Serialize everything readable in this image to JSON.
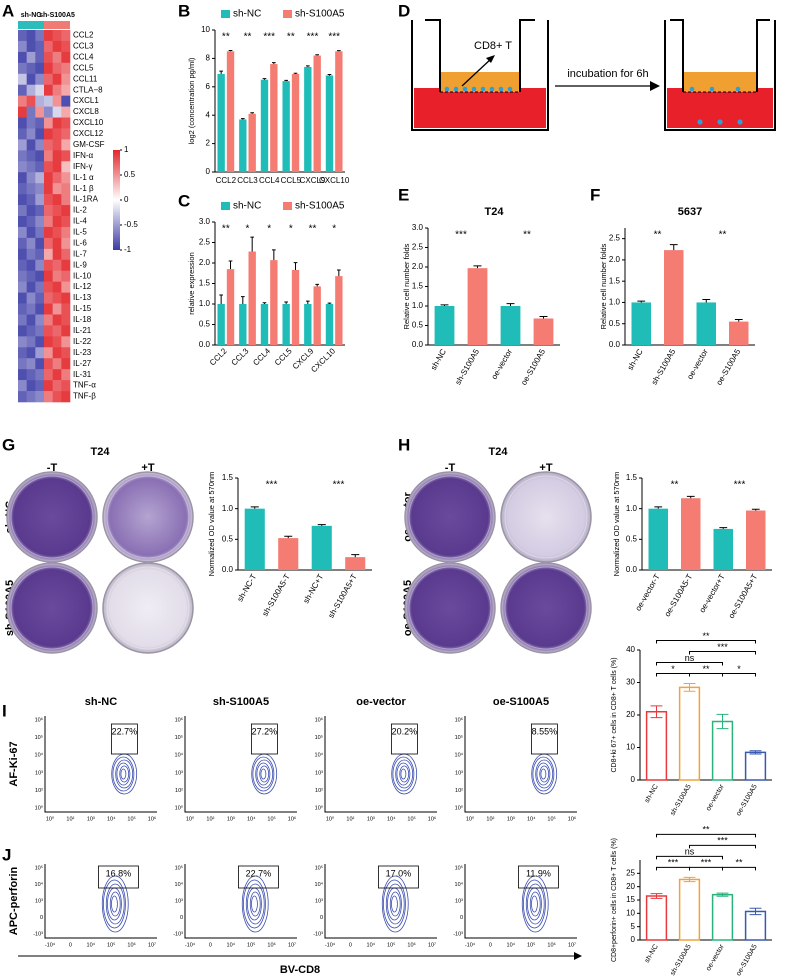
{
  "panel_letters": [
    "A",
    "B",
    "C",
    "D",
    "E",
    "F",
    "G",
    "H",
    "I",
    "J"
  ],
  "diagram": {
    "cell_label": "CD8+ T",
    "step_label": "incubation for 6h"
  },
  "plates": [
    {
      "title": "T24",
      "columns": [
        "-T",
        "+T"
      ],
      "rows": [
        "sh-NC",
        "sh-S100A5"
      ]
    },
    {
      "title": "T24",
      "columns": [
        "-T",
        "+T"
      ],
      "rows": [
        "oe-vector",
        "oe-S100A5"
      ]
    }
  ],
  "flow": {
    "columns": [
      "sh-NC",
      "sh-S100A5",
      "oe-vector",
      "oe-S100A5"
    ],
    "rows": [
      {
        "y_label": "AF-Ki-67",
        "gates": [
          "22.7%",
          "27.2%",
          "20.2%",
          "8.55%"
        ],
        "x_ticks": [
          "10⁰",
          "10²",
          "10³",
          "10⁴",
          "10⁵",
          "10⁶"
        ],
        "y_ticks": [
          "10⁰",
          "10²",
          "10³",
          "10⁴",
          "10⁵",
          "10⁶"
        ]
      },
      {
        "y_label": "APC-perforin",
        "gates": [
          "16.8%",
          "22.7%",
          "17.0%",
          "11.9%"
        ],
        "x_ticks": [
          "-10⁴",
          "0",
          "10⁴",
          "10⁵",
          "10⁶",
          "10⁷"
        ],
        "y_ticks": [
          "-10³",
          "0",
          "10³",
          "10⁴",
          "10⁵"
        ]
      }
    ],
    "x_label": "BV-CD8"
  },
  "chart_data": [
    {
      "type": "heatmap",
      "groups": [
        {
          "name": "sh-NC",
          "color": "#2bbcbc"
        },
        {
          "name": "sh-S100A5",
          "color": "#f07b74"
        }
      ],
      "rows": [
        "CCL2",
        "CCL3",
        "CCL4",
        "CCL5",
        "CCL11",
        "CTLA−8",
        "CXCL1",
        "CXCL8",
        "CXCL10",
        "CXCL12",
        "GM-CSF",
        "IFN-α",
        "IFN-γ",
        "IL-1 α",
        "IL-1 β",
        "IL-1RA",
        "IL-2",
        "IL-4",
        "IL-5",
        "IL-6",
        "IL-7",
        "IL-9",
        "IL-10",
        "IL-12",
        "IL-13",
        "IL-15",
        "IL-18",
        "IL-21",
        "IL-22",
        "IL-23",
        "IL-27",
        "IL-31",
        "TNF-α",
        "TNF-β"
      ],
      "row_colors": [
        "#e3262b",
        "#e3262b",
        "#e3262b",
        "#e3262b",
        "#000000",
        "#000000",
        "#000000",
        "#000000",
        "#e3262b",
        "#000000",
        "#000000",
        "#000000",
        "#000000",
        "#000000",
        "#000000",
        "#000000",
        "#000000",
        "#000000",
        "#000000",
        "#000000",
        "#000000",
        "#000000",
        "#000000",
        "#000000",
        "#000000",
        "#000000",
        "#000000",
        "#000000",
        "#000000",
        "#000000",
        "#000000",
        "#000000",
        "#000000",
        "#000000"
      ],
      "values": [
        [
          -0.8,
          -0.9,
          -0.7,
          0.9,
          0.8,
          0.7
        ],
        [
          -0.6,
          -0.9,
          -0.8,
          0.7,
          0.9,
          0.8
        ],
        [
          -0.9,
          -0.5,
          -0.8,
          0.8,
          0.6,
          0.9
        ],
        [
          -0.7,
          -0.8,
          -0.9,
          0.9,
          0.7,
          0.6
        ],
        [
          -0.3,
          -0.9,
          -0.6,
          0.7,
          0.9,
          0.5
        ],
        [
          -0.8,
          -0.4,
          -0.2,
          0.9,
          0.6,
          0.4
        ],
        [
          0.6,
          0.8,
          -0.4,
          -0.3,
          0.5,
          -0.9
        ],
        [
          0.9,
          -0.7,
          0.5,
          -0.6,
          -0.2,
          0.4
        ],
        [
          -0.9,
          -0.7,
          -0.8,
          0.5,
          0.9,
          0.8
        ],
        [
          -0.8,
          -0.6,
          -0.9,
          0.9,
          0.8,
          0.7
        ],
        [
          -0.5,
          -0.9,
          -0.6,
          0.7,
          0.8,
          0.4
        ],
        [
          -0.7,
          -0.8,
          -0.9,
          0.6,
          0.9,
          0.8
        ],
        [
          -0.6,
          -0.7,
          -0.8,
          0.8,
          0.9,
          0.3
        ],
        [
          -0.9,
          -0.6,
          -0.4,
          0.9,
          0.7,
          0.5
        ],
        [
          -0.8,
          -0.7,
          -0.6,
          0.9,
          0.5,
          0.6
        ],
        [
          -0.9,
          -0.8,
          -0.5,
          0.8,
          0.9,
          0.6
        ],
        [
          -0.7,
          -0.9,
          -0.8,
          0.7,
          0.8,
          0.9
        ],
        [
          -0.9,
          -0.8,
          -0.6,
          0.6,
          0.9,
          0.8
        ],
        [
          -0.6,
          -0.9,
          -0.7,
          0.9,
          0.8,
          0.6
        ],
        [
          -0.8,
          -0.6,
          -0.9,
          0.7,
          0.9,
          0.5
        ],
        [
          -0.9,
          -0.7,
          -0.8,
          0.4,
          0.9,
          0.7
        ],
        [
          -0.8,
          -0.9,
          -0.6,
          0.8,
          0.7,
          0.9
        ],
        [
          -0.7,
          -0.8,
          -0.9,
          0.9,
          0.6,
          0.7
        ],
        [
          -0.6,
          -0.9,
          -0.7,
          0.8,
          0.9,
          0.5
        ],
        [
          -0.9,
          -0.6,
          -0.8,
          0.7,
          0.8,
          0.9
        ],
        [
          -0.8,
          -0.7,
          -0.9,
          0.9,
          0.5,
          0.8
        ],
        [
          -0.7,
          -0.9,
          -0.6,
          0.6,
          0.9,
          0.8
        ],
        [
          -0.9,
          -0.8,
          -0.7,
          0.8,
          0.7,
          0.9
        ],
        [
          -0.6,
          -0.7,
          -0.9,
          0.9,
          0.8,
          0.5
        ],
        [
          -0.8,
          -0.9,
          -0.5,
          0.5,
          0.9,
          0.8
        ],
        [
          -0.7,
          -0.6,
          -0.9,
          0.8,
          0.6,
          0.9
        ],
        [
          -0.9,
          -0.8,
          -0.7,
          0.7,
          0.9,
          0.6
        ],
        [
          -0.6,
          -0.9,
          -0.8,
          0.9,
          0.7,
          0.8
        ],
        [
          -0.8,
          -0.7,
          -0.6,
          0.6,
          0.8,
          0.9
        ]
      ],
      "zlim": [
        -1,
        1
      ],
      "zticks": [
        1,
        0.5,
        0,
        -0.5,
        -1
      ],
      "colorscale": [
        "#3b3ba6",
        "#ffffff",
        "#e3262b"
      ]
    },
    {
      "type": "bar",
      "y_label": "log2 (concentration pg/ml)",
      "categories": [
        "CCL2",
        "CCL3",
        "CCL4",
        "CCL5",
        "CXCL9",
        "CXCL10"
      ],
      "series": [
        {
          "name": "sh-NC",
          "color": "#20bdb8",
          "values": [
            6.9,
            3.7,
            6.5,
            6.4,
            7.4,
            6.8
          ],
          "errors": [
            0.2,
            0.06,
            0.08,
            0.05,
            0.07,
            0.07
          ]
        },
        {
          "name": "sh-S100A5",
          "color": "#f47c72",
          "values": [
            8.5,
            4.1,
            7.6,
            6.9,
            8.2,
            8.5
          ],
          "errors": [
            0.06,
            0.07,
            0.1,
            0.05,
            0.06,
            0.05
          ]
        }
      ],
      "significance": [
        "**",
        "**",
        "***",
        "**",
        "***",
        "***"
      ],
      "ylim": [
        0,
        10
      ],
      "yticks": [
        0,
        2,
        4,
        6,
        8,
        10
      ]
    },
    {
      "type": "bar",
      "y_label": "relative expression",
      "categories": [
        "CCL2",
        "CCL3",
        "CCL4",
        "CCL5",
        "CXCL9",
        "CXCL10"
      ],
      "series": [
        {
          "name": "sh-NC",
          "color": "#20bdb8",
          "values": [
            1.0,
            1.0,
            1.0,
            1.0,
            1.0,
            1.0
          ],
          "errors": [
            0.22,
            0.18,
            0.03,
            0.05,
            0.07,
            0.02
          ]
        },
        {
          "name": "sh-S100A5",
          "color": "#f47c72",
          "values": [
            1.85,
            2.28,
            2.07,
            1.83,
            1.43,
            1.68
          ],
          "errors": [
            0.2,
            0.35,
            0.25,
            0.18,
            0.05,
            0.15
          ]
        }
      ],
      "significance": [
        "**",
        "*",
        "*",
        "*",
        "**",
        "*"
      ],
      "ylim": [
        0,
        3
      ],
      "yticks": [
        {
          "value": 0,
          "label": "0.0"
        },
        0.5,
        {
          "value": 1,
          "label": "1.0"
        },
        1.5,
        {
          "value": 2,
          "label": "2.0"
        },
        2.5,
        {
          "value": 3,
          "label": "3.0"
        }
      ],
      "x_label_rotation": -45
    },
    {
      "type": "bar",
      "title": "T24",
      "y_label": "Relative cell number folds",
      "categories": [
        "sh-NC",
        "sh-S100A5",
        "oe-vector",
        "oe-S100A5"
      ],
      "values": [
        1.0,
        1.97,
        1.0,
        0.68
      ],
      "errors": [
        0.03,
        0.06,
        0.06,
        0.05
      ],
      "colors": [
        "#20bdb8",
        "#f47c72",
        "#20bdb8",
        "#f47c72"
      ],
      "significance": [
        "***",
        "**"
      ],
      "ylim": [
        0,
        3
      ],
      "yticks": [
        {
          "value": 0,
          "label": "0.0"
        },
        0.5,
        {
          "value": 1,
          "label": "1.0"
        },
        1.5,
        {
          "value": 2,
          "label": "2.0"
        },
        2.5,
        {
          "value": 3,
          "label": "3.0"
        }
      ],
      "x_label_rotation": -60
    },
    {
      "type": "bar",
      "title": "5637",
      "y_label": "Relative cell number folds",
      "categories": [
        "sh-NC",
        "sh-S100A5",
        "oe-vector",
        "oe-S100A5"
      ],
      "values": [
        1.0,
        2.23,
        1.0,
        0.55
      ],
      "errors": [
        0.03,
        0.13,
        0.07,
        0.05
      ],
      "colors": [
        "#20bdb8",
        "#f47c72",
        "#20bdb8",
        "#f47c72"
      ],
      "significance": [
        "**",
        "**"
      ],
      "ylim": [
        0,
        2.75
      ],
      "yticks": [
        {
          "value": 0,
          "label": "0.0"
        },
        0.5,
        {
          "value": 1,
          "label": "1.0"
        },
        1.5,
        {
          "value": 2,
          "label": "2.0"
        },
        2.5
      ],
      "x_label_rotation": -60
    },
    {
      "type": "bar",
      "y_label": "Normalized OD value at 570nm",
      "categories": [
        "sh-NC-T",
        "sh-S100A5-T",
        "sh-NC+T",
        "sh-S100A5+T"
      ],
      "values": [
        1.0,
        0.52,
        0.72,
        0.21
      ],
      "errors": [
        0.03,
        0.03,
        0.02,
        0.04
      ],
      "colors": [
        "#20bdb8",
        "#f47c72",
        "#20bdb8",
        "#f47c72"
      ],
      "significance": [
        "***",
        "***"
      ],
      "ylim": [
        0,
        1.5
      ],
      "yticks": [
        {
          "value": 0,
          "label": "0.0"
        },
        0.5,
        {
          "value": 1,
          "label": "1.0"
        },
        1.5
      ],
      "x_label_rotation": -60
    },
    {
      "type": "bar",
      "y_label": "Normalized OD value at 570nm",
      "categories": [
        "oe-vector-T",
        "oe-S100A5-T",
        "oe-vector+T",
        "oe-S100A5+T"
      ],
      "values": [
        1.0,
        1.17,
        0.67,
        0.97
      ],
      "errors": [
        0.03,
        0.03,
        0.02,
        0.02
      ],
      "colors": [
        "#20bdb8",
        "#f47c72",
        "#20bdb8",
        "#f47c72"
      ],
      "significance": [
        "**",
        "***"
      ],
      "ylim": [
        0,
        1.5
      ],
      "yticks": [
        {
          "value": 0,
          "label": "0.0"
        },
        0.5,
        {
          "value": 1,
          "label": "1.0"
        },
        1.5
      ],
      "x_label_rotation": -60
    },
    {
      "type": "bar",
      "y_label": "CD8+ki 67+ cells in CD8+ T cells (%)",
      "categories": [
        "sh-NC",
        "sh-S100A5",
        "oe-vector",
        "oe-S100A5"
      ],
      "values": [
        21,
        28.5,
        18,
        8.5
      ],
      "errors": [
        1.8,
        1.2,
        2.2,
        0.5
      ],
      "colors": [
        "#e8393c",
        "#f2a23a",
        "#2ab37a",
        "#3a58b0"
      ],
      "outlined": true,
      "comparisons": [
        {
          "groups": [
            0,
            3
          ],
          "label": "**"
        },
        {
          "groups": [
            1,
            3
          ],
          "label": "***"
        },
        {
          "groups": [
            0,
            2
          ],
          "label": "ns"
        },
        {
          "groups": [
            0,
            1
          ],
          "label": "*"
        },
        {
          "groups": [
            1,
            2
          ],
          "label": "**"
        },
        {
          "groups": [
            2,
            3
          ],
          "label": "*"
        }
      ],
      "ylim": [
        0,
        40
      ],
      "yticks": [
        0,
        10,
        20,
        30,
        40
      ],
      "x_label_rotation": -60
    },
    {
      "type": "bar",
      "y_label": "CD8+perforin+ cells in CD8+ T cells (%)",
      "categories": [
        "sh-NC",
        "sh-S100A5",
        "oe-vector",
        "oe-S100A5"
      ],
      "values": [
        16.5,
        22.7,
        17.0,
        10.7
      ],
      "errors": [
        0.9,
        0.8,
        0.6,
        1.2
      ],
      "colors": [
        "#e8393c",
        "#f2a23a",
        "#2ab37a",
        "#3a58b0"
      ],
      "outlined": true,
      "comparisons": [
        {
          "groups": [
            0,
            3
          ],
          "label": "**"
        },
        {
          "groups": [
            1,
            3
          ],
          "label": "***"
        },
        {
          "groups": [
            0,
            2
          ],
          "label": "ns"
        },
        {
          "groups": [
            0,
            1
          ],
          "label": "***"
        },
        {
          "groups": [
            1,
            2
          ],
          "label": "***"
        },
        {
          "groups": [
            2,
            3
          ],
          "label": "**"
        }
      ],
      "ylim": [
        0,
        30
      ],
      "yticks": [
        0,
        5,
        10,
        15,
        20,
        25
      ],
      "x_label_rotation": -60
    }
  ]
}
